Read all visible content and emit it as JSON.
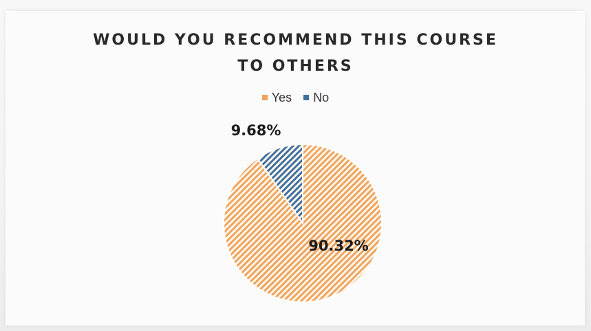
{
  "chart_data": {
    "type": "pie",
    "title_lines": [
      "WOULD YOU RECOMMEND THIS COURSE",
      "TO OTHERS"
    ],
    "legend_position": "top",
    "categories": [
      "Yes",
      "No"
    ],
    "values": [
      90.32,
      9.68
    ],
    "data_labels": [
      "90.32%",
      "9.68%"
    ],
    "colors": [
      "#f0a45a",
      "#3f6f9f"
    ],
    "fill_pattern": "diagonal-hatch"
  }
}
